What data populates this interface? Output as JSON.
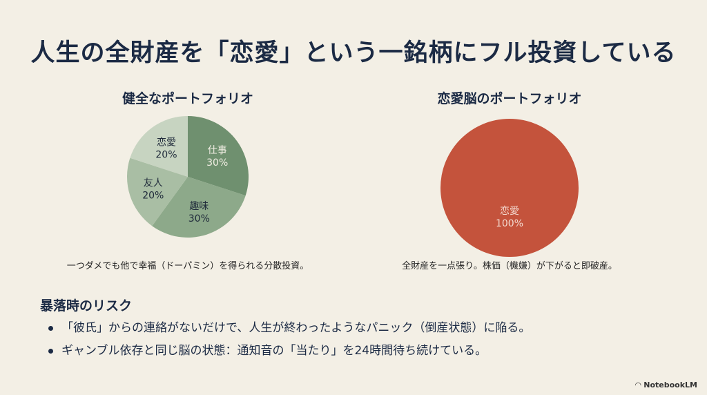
{
  "title": "人生の全財産を「恋愛」という一銘柄にフル投資している",
  "chart_data": [
    {
      "type": "pie",
      "title": "健全なポートフォリオ",
      "caption": "一つダメでも他で幸福（ドーパミン）を得られる分散投資。",
      "slices": [
        {
          "label": "仕事",
          "value": 30,
          "color": "#6f906f"
        },
        {
          "label": "趣味",
          "value": 30,
          "color": "#8da98a"
        },
        {
          "label": "友人",
          "value": 20,
          "color": "#a9bea4"
        },
        {
          "label": "恋愛",
          "value": 20,
          "color": "#c7d4c1"
        }
      ],
      "label_colors": [
        "#f3efe5",
        "#1f2a3a",
        "#1f2a3a",
        "#1f2a3a"
      ]
    },
    {
      "type": "pie",
      "title": "恋愛脳のポートフォリオ",
      "caption": "全財産を一点張り。株価（機嫌）が下がると即破産。",
      "slices": [
        {
          "label": "恋愛",
          "value": 100,
          "color": "#c4533c"
        }
      ],
      "label_colors": [
        "#f3d9cf"
      ]
    }
  ],
  "risk": {
    "heading": "暴落時のリスク",
    "items": [
      "「彼氏」からの連絡がないだけで、人生が終わったようなパニック（倒産状態）に陥る。",
      "ギャンブル依存と同じ脳の状態：通知音の「当たり」を24時間待ち続けている。"
    ]
  },
  "logo": "NotebookLM"
}
